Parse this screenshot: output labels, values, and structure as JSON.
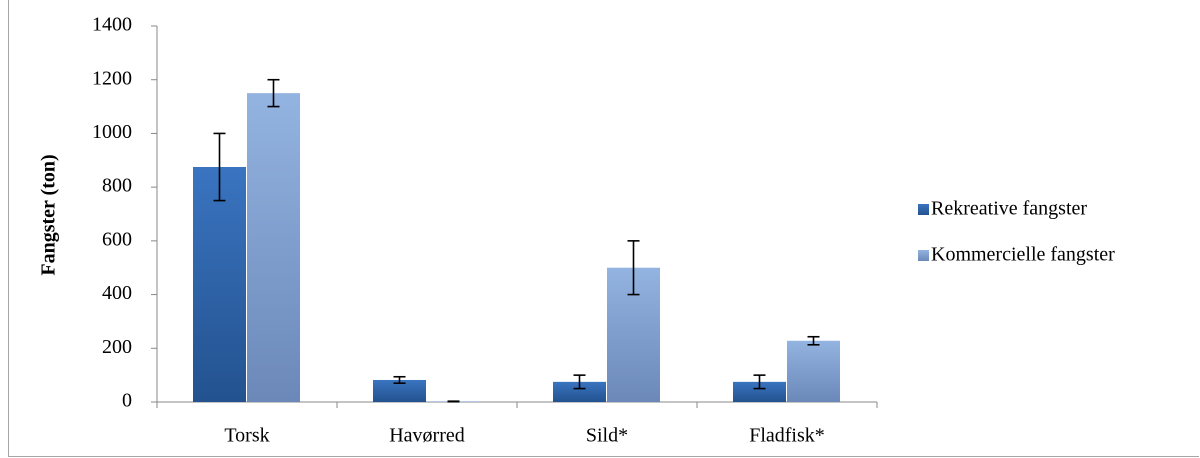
{
  "chart_data": {
    "type": "bar",
    "title": "",
    "xlabel": "",
    "ylabel": "Fangster (ton)",
    "ylim": [
      0,
      1400
    ],
    "yticks": [
      0,
      200,
      400,
      600,
      800,
      1000,
      1200,
      1400
    ],
    "categories": [
      "Torsk",
      "Havørred",
      "Sild*",
      "Fladfisk*"
    ],
    "series": [
      {
        "name": "Rekreative fangster",
        "values": [
          875,
          82,
          75,
          75
        ],
        "error": [
          125,
          12,
          25,
          25
        ],
        "color": "#2e64aa"
      },
      {
        "name": "Kommercielle fangster",
        "values": [
          1150,
          2,
          500,
          228
        ],
        "error": [
          50,
          1,
          100,
          15
        ],
        "color": "#7f9fd0"
      }
    ],
    "grid": false,
    "legend_position": "right",
    "error_bars": true
  }
}
